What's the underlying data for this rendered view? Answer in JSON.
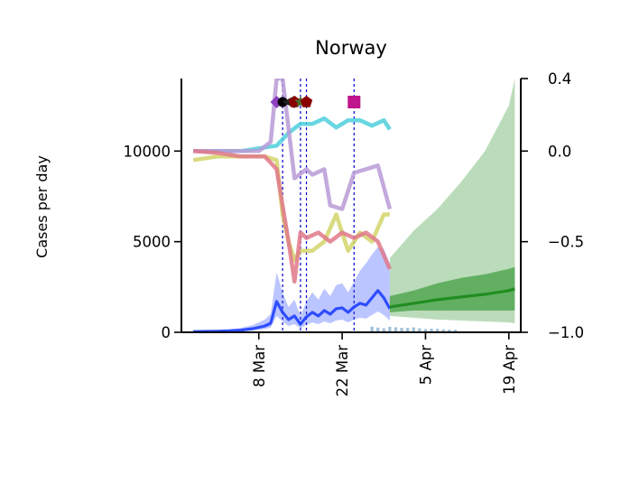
{
  "chart_data": {
    "type": "line",
    "title": "Norway",
    "ylabel": "Cases per day",
    "x_ticks": [
      "8 Mar",
      "22 Mar",
      "5 Apr",
      "19 Apr"
    ],
    "x_tick_dates": [
      "2020-03-08",
      "2020-03-22",
      "2020-04-05",
      "2020-04-19"
    ],
    "xlim": [
      "2020-02-24",
      "2020-04-21"
    ],
    "ylim": [
      0,
      14000
    ],
    "y_ticks": [
      0,
      5000,
      10000
    ],
    "y_tick_labels": [
      "0",
      "5000",
      "10000"
    ],
    "y2lim": [
      -1.0,
      0.4
    ],
    "y2_ticks": [
      -1.0,
      -0.5,
      0.0,
      0.4
    ],
    "y2_tick_labels": [
      "−1.0",
      "−0.5",
      "0.0",
      "0.4"
    ],
    "intervention_dates": [
      "2020-03-12",
      "2020-03-15",
      "2020-03-16",
      "2020-03-24"
    ],
    "intervention_markers": [
      {
        "date": "2020-03-11",
        "shape": "diamond",
        "color": "#8b3fbf"
      },
      {
        "date": "2020-03-12",
        "shape": "circle",
        "color": "#000000"
      },
      {
        "date": "2020-03-13",
        "shape": "triangle-left",
        "color": "#222222"
      },
      {
        "date": "2020-03-14",
        "shape": "pentagon",
        "color": "#8a0000"
      },
      {
        "date": "2020-03-15",
        "shape": "star",
        "color": "#4a6a30"
      },
      {
        "date": "2020-03-16",
        "shape": "pentagon",
        "color": "#8a0000"
      },
      {
        "date": "2020-03-24",
        "shape": "square",
        "color": "#c0148c"
      }
    ],
    "series": [
      {
        "role": "reported-cases",
        "axis": "left",
        "style": "bars",
        "color": "#7fa9c9",
        "x": [
          "2020-03-27",
          "2020-03-28",
          "2020-03-29",
          "2020-03-30",
          "2020-03-31",
          "2020-04-01",
          "2020-04-02",
          "2020-04-03",
          "2020-04-04",
          "2020-04-05",
          "2020-04-06",
          "2020-04-07",
          "2020-04-08",
          "2020-04-09",
          "2020-04-10"
        ],
        "values": [
          310,
          260,
          220,
          300,
          280,
          250,
          240,
          270,
          220,
          180,
          200,
          190,
          160,
          150,
          140
        ]
      },
      {
        "role": "cases-fit",
        "axis": "left",
        "color": "#1f3fff",
        "x": [
          "2020-02-26",
          "2020-02-28",
          "2020-03-01",
          "2020-03-03",
          "2020-03-05",
          "2020-03-07",
          "2020-03-09",
          "2020-03-10",
          "2020-03-11",
          "2020-03-12",
          "2020-03-13",
          "2020-03-14",
          "2020-03-15",
          "2020-03-16",
          "2020-03-17",
          "2020-03-18",
          "2020-03-19",
          "2020-03-20",
          "2020-03-21",
          "2020-03-22",
          "2020-03-23",
          "2020-03-24",
          "2020-03-25",
          "2020-03-26",
          "2020-03-27",
          "2020-03-28",
          "2020-03-29",
          "2020-03-30"
        ],
        "values": [
          40,
          50,
          60,
          80,
          120,
          200,
          350,
          500,
          1700,
          1100,
          700,
          900,
          450,
          850,
          1100,
          900,
          1200,
          1000,
          1300,
          1350,
          1100,
          1400,
          1600,
          1500,
          1900,
          2300,
          1900,
          1300
        ],
        "band_low": [
          20,
          25,
          30,
          40,
          60,
          100,
          180,
          260,
          900,
          600,
          350,
          450,
          220,
          420,
          550,
          450,
          600,
          500,
          650,
          700,
          550,
          700,
          800,
          750,
          950,
          1150,
          950,
          650
        ],
        "band_high": [
          80,
          100,
          120,
          160,
          240,
          400,
          700,
          1000,
          3300,
          2200,
          1400,
          1800,
          900,
          1700,
          2200,
          1800,
          2400,
          2000,
          2600,
          2700,
          2200,
          2800,
          3400,
          3800,
          4300,
          4700,
          4600,
          3800
        ]
      },
      {
        "role": "forecast",
        "axis": "left",
        "color": "#1a8a1a",
        "x": [
          "2020-03-30",
          "2020-04-03",
          "2020-04-07",
          "2020-04-11",
          "2020-04-15",
          "2020-04-19",
          "2020-04-20"
        ],
        "values": [
          1400,
          1600,
          1800,
          1950,
          2100,
          2300,
          2400
        ],
        "band_low": [
          900,
          800,
          700,
          650,
          600,
          550,
          500
        ],
        "band_high": [
          4100,
          5600,
          6800,
          8300,
          10000,
          12500,
          14000
        ],
        "inner_low": [
          1100,
          1200,
          1200,
          1200,
          1200,
          1200,
          1200
        ],
        "inner_high": [
          2000,
          2300,
          2700,
          3000,
          3200,
          3500,
          3600
        ]
      },
      {
        "role": "effect-cyan",
        "axis": "right",
        "color": "#4dcfdc",
        "x": [
          "2020-02-26",
          "2020-03-01",
          "2020-03-05",
          "2020-03-09",
          "2020-03-11",
          "2020-03-13",
          "2020-03-15",
          "2020-03-17",
          "2020-03-19",
          "2020-03-21",
          "2020-03-23",
          "2020-03-25",
          "2020-03-27",
          "2020-03-29",
          "2020-03-30"
        ],
        "values": [
          0.0,
          0.0,
          0.0,
          0.02,
          0.03,
          0.1,
          0.15,
          0.15,
          0.18,
          0.13,
          0.17,
          0.17,
          0.14,
          0.17,
          0.12
        ]
      },
      {
        "role": "effect-purple",
        "axis": "right",
        "color": "#b99ad6",
        "x": [
          "2020-02-26",
          "2020-03-01",
          "2020-03-05",
          "2020-03-08",
          "2020-03-10",
          "2020-03-11",
          "2020-03-12",
          "2020-03-14",
          "2020-03-16",
          "2020-03-17",
          "2020-03-19",
          "2020-03-20",
          "2020-03-22",
          "2020-03-24",
          "2020-03-26",
          "2020-03-28",
          "2020-03-30"
        ],
        "values": [
          0.0,
          0.0,
          0.0,
          0.0,
          0.05,
          0.4,
          0.4,
          -0.15,
          -0.1,
          -0.13,
          -0.1,
          -0.3,
          -0.32,
          -0.12,
          -0.1,
          -0.08,
          -0.32
        ]
      },
      {
        "role": "effect-yellow",
        "axis": "right",
        "color": "#d4d46a",
        "x": [
          "2020-02-26",
          "2020-03-01",
          "2020-03-05",
          "2020-03-09",
          "2020-03-11",
          "2020-03-12",
          "2020-03-13",
          "2020-03-14",
          "2020-03-15",
          "2020-03-17",
          "2020-03-19",
          "2020-03-21",
          "2020-03-23",
          "2020-03-25",
          "2020-03-27",
          "2020-03-29",
          "2020-03-30"
        ],
        "values": [
          -0.05,
          -0.03,
          -0.03,
          -0.03,
          -0.05,
          -0.35,
          -0.5,
          -0.6,
          -0.55,
          -0.55,
          -0.5,
          -0.35,
          -0.55,
          -0.45,
          -0.5,
          -0.35,
          -0.35
        ]
      },
      {
        "role": "effect-red",
        "axis": "right",
        "color": "#e0788a",
        "x": [
          "2020-02-26",
          "2020-03-01",
          "2020-03-05",
          "2020-03-09",
          "2020-03-11",
          "2020-03-12",
          "2020-03-13",
          "2020-03-14",
          "2020-03-15",
          "2020-03-16",
          "2020-03-18",
          "2020-03-20",
          "2020-03-22",
          "2020-03-24",
          "2020-03-26",
          "2020-03-28",
          "2020-03-30"
        ],
        "values": [
          0.0,
          -0.01,
          -0.03,
          -0.03,
          -0.1,
          -0.3,
          -0.5,
          -0.72,
          -0.45,
          -0.48,
          -0.45,
          -0.5,
          -0.45,
          -0.48,
          -0.45,
          -0.5,
          -0.65
        ]
      }
    ]
  }
}
